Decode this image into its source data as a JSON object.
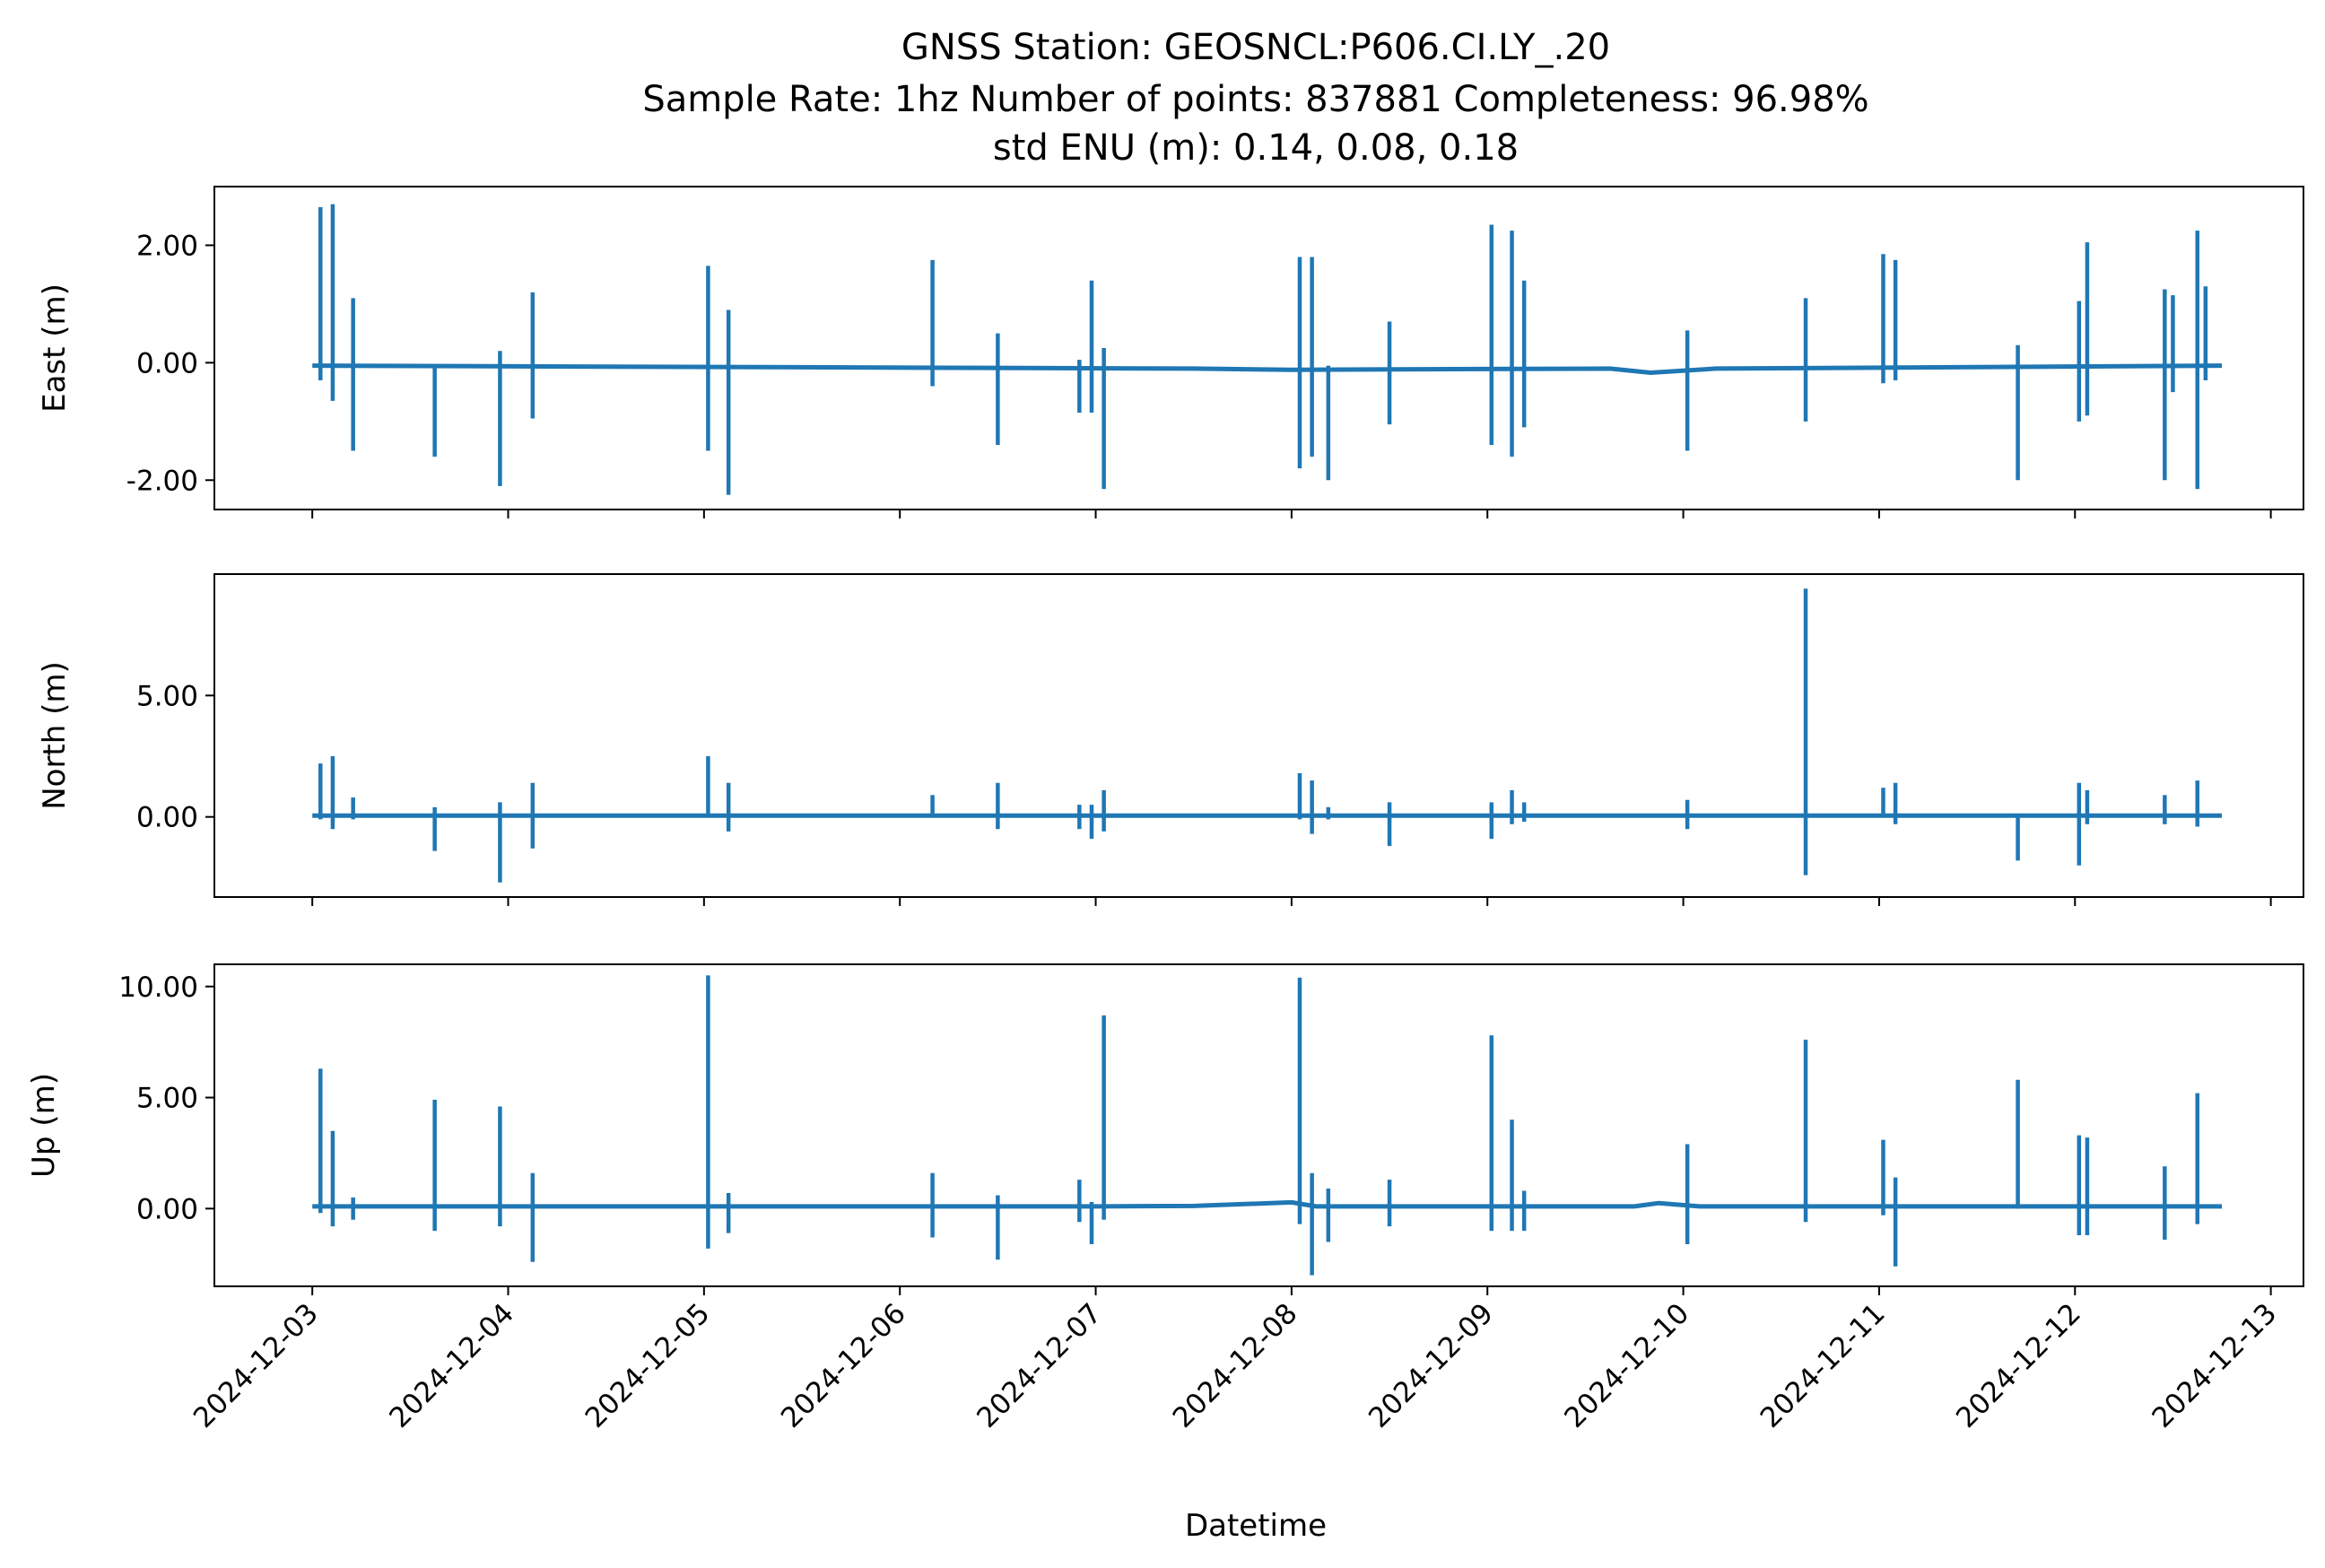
{
  "title_lines": [
    "GNSS Station: GEOSNCL:P606.CI.LY_.20",
    "Sample Rate: 1hz   Number of points: 837881    Completeness:  96.98%",
    "std ENU (m):  0.14, 0.08, 0.18"
  ],
  "xlabel": "Datetime",
  "line_color": "#1f77b4",
  "chart_data": {
    "type": "line",
    "x_axis": {
      "type": "date",
      "range": [
        "2024-12-02T12:00",
        "2024-12-13T04:00"
      ],
      "ticks": [
        "2024-12-03",
        "2024-12-04",
        "2024-12-05",
        "2024-12-06",
        "2024-12-07",
        "2024-12-08",
        "2024-12-09",
        "2024-12-10",
        "2024-12-11",
        "2024-12-12",
        "2024-12-13"
      ],
      "data_range": [
        "2024-12-03T00:00",
        "2024-12-12T18:00"
      ]
    },
    "panels": [
      {
        "ylabel": "East (m)",
        "ylim": [
          -2.5,
          3.0
        ],
        "yticks": [
          -2.0,
          0.0,
          2.0
        ],
        "ytick_labels": [
          "-2.00",
          "0.00",
          "2.00"
        ],
        "baseline": -0.05,
        "drift": [
          [
            "2024-12-07T12:00",
            -0.1
          ],
          [
            "2024-12-08T00:00",
            -0.12
          ],
          [
            "2024-12-09T15:00",
            -0.1
          ],
          [
            "2024-12-09T20:00",
            -0.17
          ],
          [
            "2024-12-10T04:00",
            -0.1
          ]
        ],
        "spikes": [
          [
            "2024-12-03T01:00",
            -0.3,
            2.65
          ],
          [
            "2024-12-03T02:30",
            -0.65,
            2.7
          ],
          [
            "2024-12-03T05:00",
            -1.5,
            1.1
          ],
          [
            "2024-12-03T15:00",
            -1.6,
            -0.05
          ],
          [
            "2024-12-03T23:00",
            -2.1,
            0.2
          ],
          [
            "2024-12-04T03:00",
            -0.95,
            1.2
          ],
          [
            "2024-12-05T00:30",
            -1.5,
            1.65
          ],
          [
            "2024-12-05T03:00",
            -2.25,
            0.9
          ],
          [
            "2024-12-06T04:00",
            -0.4,
            1.75
          ],
          [
            "2024-12-06T12:00",
            -1.4,
            0.5
          ],
          [
            "2024-12-06T22:00",
            -0.85,
            0.05
          ],
          [
            "2024-12-06T23:30",
            -0.85,
            1.4
          ],
          [
            "2024-12-07T01:00",
            -2.15,
            0.25
          ],
          [
            "2024-12-08T01:00",
            -1.8,
            1.8
          ],
          [
            "2024-12-08T02:30",
            -1.6,
            1.8
          ],
          [
            "2024-12-08T04:30",
            -2.0,
            -0.05
          ],
          [
            "2024-12-08T12:00",
            -1.05,
            0.7
          ],
          [
            "2024-12-09T00:30",
            -1.4,
            2.35
          ],
          [
            "2024-12-09T03:00",
            -1.6,
            2.25
          ],
          [
            "2024-12-09T04:30",
            -1.1,
            1.4
          ],
          [
            "2024-12-10T00:30",
            -1.5,
            0.55
          ],
          [
            "2024-12-10T15:00",
            -1.0,
            1.1
          ],
          [
            "2024-12-11T00:30",
            -0.35,
            1.85
          ],
          [
            "2024-12-11T02:00",
            -0.3,
            1.75
          ],
          [
            "2024-12-11T17:00",
            -2.0,
            0.3
          ],
          [
            "2024-12-12T00:30",
            -1.0,
            1.05
          ],
          [
            "2024-12-12T01:30",
            -0.9,
            2.05
          ],
          [
            "2024-12-12T11:00",
            -2.0,
            1.25
          ],
          [
            "2024-12-12T12:00",
            -0.5,
            1.15
          ],
          [
            "2024-12-12T15:00",
            -2.15,
            2.25
          ],
          [
            "2024-12-12T16:00",
            -0.3,
            1.3
          ]
        ]
      },
      {
        "ylabel": "North (m)",
        "ylim": [
          -3.3,
          10.0
        ],
        "yticks": [
          0.0,
          5.0
        ],
        "ytick_labels": [
          "0.00",
          "5.00"
        ],
        "baseline": 0.05,
        "drift": [],
        "spikes": [
          [
            "2024-12-03T01:00",
            -0.1,
            2.2
          ],
          [
            "2024-12-03T02:30",
            -0.5,
            2.5
          ],
          [
            "2024-12-03T05:00",
            -0.1,
            0.8
          ],
          [
            "2024-12-03T15:00",
            -1.4,
            0.4
          ],
          [
            "2024-12-03T23:00",
            -2.7,
            0.6
          ],
          [
            "2024-12-04T03:00",
            -1.3,
            1.4
          ],
          [
            "2024-12-05T00:30",
            0.0,
            2.5
          ],
          [
            "2024-12-05T03:00",
            -0.6,
            1.4
          ],
          [
            "2024-12-06T04:00",
            0.0,
            0.9
          ],
          [
            "2024-12-06T12:00",
            -0.5,
            1.4
          ],
          [
            "2024-12-06T22:00",
            -0.5,
            0.5
          ],
          [
            "2024-12-06T23:30",
            -0.9,
            0.5
          ],
          [
            "2024-12-07T01:00",
            -0.6,
            1.1
          ],
          [
            "2024-12-08T01:00",
            -0.1,
            1.8
          ],
          [
            "2024-12-08T02:30",
            -0.7,
            1.5
          ],
          [
            "2024-12-08T04:30",
            -0.1,
            0.4
          ],
          [
            "2024-12-08T12:00",
            -1.2,
            0.6
          ],
          [
            "2024-12-09T00:30",
            -0.9,
            0.6
          ],
          [
            "2024-12-09T03:00",
            -0.3,
            1.1
          ],
          [
            "2024-12-09T04:30",
            -0.2,
            0.6
          ],
          [
            "2024-12-10T00:30",
            -0.5,
            0.7
          ],
          [
            "2024-12-10T15:00",
            -2.4,
            9.4
          ],
          [
            "2024-12-11T00:30",
            0.0,
            1.2
          ],
          [
            "2024-12-11T02:00",
            -0.3,
            1.4
          ],
          [
            "2024-12-11T17:00",
            -1.8,
            0.1
          ],
          [
            "2024-12-12T00:30",
            -2.0,
            1.4
          ],
          [
            "2024-12-12T01:30",
            -0.3,
            1.1
          ],
          [
            "2024-12-12T11:00",
            -0.3,
            0.9
          ],
          [
            "2024-12-12T15:00",
            -0.4,
            1.5
          ]
        ]
      },
      {
        "ylabel": "Up (m)",
        "ylim": [
          -3.5,
          11.0
        ],
        "yticks": [
          0.0,
          5.0,
          10.0
        ],
        "ytick_labels": [
          "0.00",
          "5.00",
          "10.00"
        ],
        "baseline": 0.1,
        "drift": [
          [
            "2024-12-07T00:00",
            0.1
          ],
          [
            "2024-12-07T12:00",
            0.12
          ],
          [
            "2024-12-08T00:00",
            0.28
          ],
          [
            "2024-12-08T03:00",
            0.1
          ],
          [
            "2024-12-09T18:00",
            0.1
          ],
          [
            "2024-12-09T21:00",
            0.25
          ],
          [
            "2024-12-10T02:00",
            0.1
          ]
        ],
        "spikes": [
          [
            "2024-12-03T01:00",
            -0.2,
            6.3
          ],
          [
            "2024-12-03T02:30",
            -0.8,
            3.5
          ],
          [
            "2024-12-03T05:00",
            -0.5,
            0.5
          ],
          [
            "2024-12-03T15:00",
            -1.0,
            4.9
          ],
          [
            "2024-12-03T23:00",
            -0.8,
            4.6
          ],
          [
            "2024-12-04T03:00",
            -2.4,
            1.6
          ],
          [
            "2024-12-05T00:30",
            -1.8,
            10.5
          ],
          [
            "2024-12-05T03:00",
            -1.1,
            0.7
          ],
          [
            "2024-12-06T04:00",
            -1.3,
            1.6
          ],
          [
            "2024-12-06T12:00",
            -2.3,
            0.6
          ],
          [
            "2024-12-06T22:00",
            -0.6,
            1.3
          ],
          [
            "2024-12-06T23:30",
            -1.6,
            0.3
          ],
          [
            "2024-12-07T01:00",
            -0.5,
            8.7
          ],
          [
            "2024-12-08T01:00",
            -0.7,
            10.4
          ],
          [
            "2024-12-08T02:30",
            -3.0,
            1.6
          ],
          [
            "2024-12-08T04:30",
            -1.5,
            0.9
          ],
          [
            "2024-12-08T12:00",
            -0.8,
            1.3
          ],
          [
            "2024-12-09T00:30",
            -1.0,
            7.8
          ],
          [
            "2024-12-09T03:00",
            -1.0,
            4.0
          ],
          [
            "2024-12-09T04:30",
            -1.0,
            0.8
          ],
          [
            "2024-12-10T00:30",
            -1.6,
            2.9
          ],
          [
            "2024-12-10T15:00",
            -0.6,
            7.6
          ],
          [
            "2024-12-11T00:30",
            -0.3,
            3.1
          ],
          [
            "2024-12-11T02:00",
            -2.6,
            1.4
          ],
          [
            "2024-12-11T17:00",
            0.0,
            5.8
          ],
          [
            "2024-12-12T00:30",
            -1.2,
            3.3
          ],
          [
            "2024-12-12T01:30",
            -1.2,
            3.2
          ],
          [
            "2024-12-12T11:00",
            -1.4,
            1.9
          ],
          [
            "2024-12-12T15:00",
            -0.7,
            5.2
          ]
        ]
      }
    ]
  }
}
